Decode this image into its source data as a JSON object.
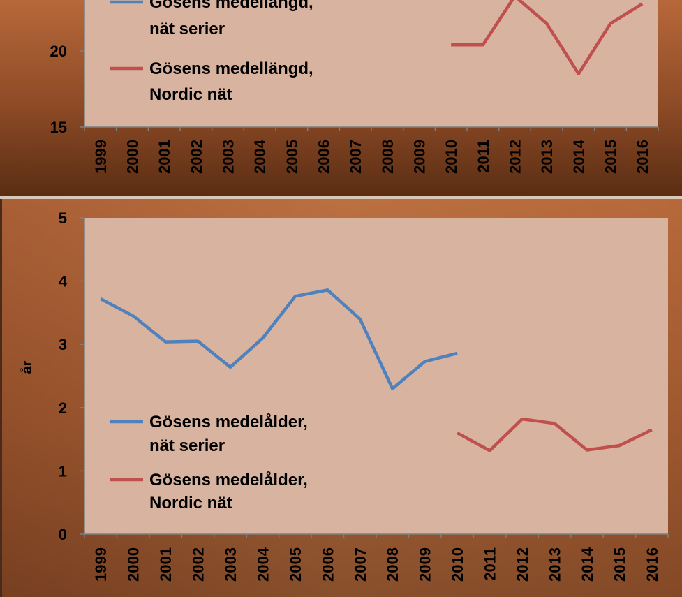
{
  "chart_data": [
    {
      "type": "line",
      "ylabel": "",
      "ylim": [
        15,
        25
      ],
      "yticks_visible": [
        "15",
        "20"
      ],
      "categories": [
        "1999",
        "2000",
        "2001",
        "2002",
        "2003",
        "2004",
        "2005",
        "2006",
        "2007",
        "2008",
        "2009",
        "2010",
        "2011",
        "2012",
        "2013",
        "2014",
        "2015",
        "2016"
      ],
      "series": [
        {
          "name_lines": [
            "Gösens medellängd,",
            "nät serier"
          ],
          "color": "#4f81bd",
          "values": [
            null,
            null,
            null,
            null,
            null,
            null,
            null,
            null,
            null,
            null,
            null,
            null,
            null,
            null,
            null,
            null,
            null,
            null
          ]
        },
        {
          "name_lines": [
            "Gösens medellängd,",
            "Nordic nät"
          ],
          "color": "#c0504d",
          "values": [
            null,
            null,
            null,
            null,
            null,
            null,
            null,
            null,
            null,
            null,
            null,
            20.4,
            20.4,
            23.6,
            21.8,
            18.5,
            21.8,
            23.1
          ]
        }
      ],
      "legend_position": "left",
      "grid": false
    },
    {
      "type": "line",
      "ylabel": "år",
      "ylim": [
        0,
        5
      ],
      "yticks_visible": [
        "0",
        "1",
        "2",
        "3",
        "4",
        "5"
      ],
      "categories": [
        "1999",
        "2000",
        "2001",
        "2002",
        "2003",
        "2004",
        "2005",
        "2006",
        "2007",
        "2008",
        "2009",
        "2010",
        "2011",
        "2012",
        "2013",
        "2014",
        "2015",
        "2016"
      ],
      "series": [
        {
          "name_lines": [
            "Gösens medelålder,",
            "nät serier"
          ],
          "color": "#4f81bd",
          "values": [
            3.72,
            3.45,
            3.04,
            3.05,
            2.64,
            3.1,
            3.76,
            3.86,
            3.4,
            2.3,
            2.73,
            2.86,
            null,
            null,
            null,
            null,
            null,
            null
          ]
        },
        {
          "name_lines": [
            "Gösens medelålder,",
            "Nordic nät"
          ],
          "color": "#c0504d",
          "values": [
            null,
            null,
            null,
            null,
            null,
            null,
            null,
            null,
            null,
            null,
            null,
            1.6,
            1.32,
            1.82,
            1.75,
            1.33,
            1.4,
            1.65
          ]
        }
      ],
      "legend_position": "left",
      "grid": false
    }
  ]
}
